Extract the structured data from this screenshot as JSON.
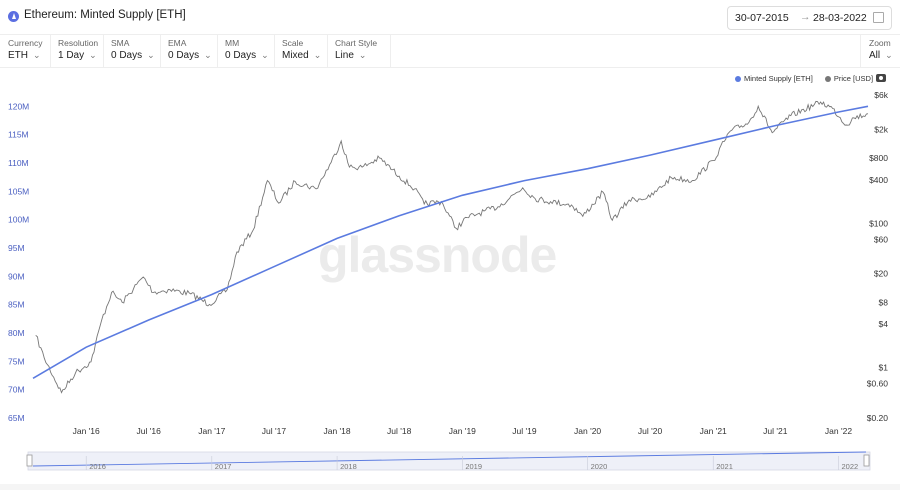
{
  "header": {
    "title": "Ethereum: Minted Supply [ETH]",
    "date_from": "30-07-2015",
    "date_to": "28-03-2022",
    "date_sep": "→"
  },
  "controls": [
    {
      "label": "Currency",
      "value": "ETH"
    },
    {
      "label": "Resolution",
      "value": "1 Day"
    },
    {
      "label": "SMA",
      "value": "0 Days"
    },
    {
      "label": "EMA",
      "value": "0 Days"
    },
    {
      "label": "MM",
      "value": "0 Days"
    },
    {
      "label": "Scale",
      "value": "Mixed"
    },
    {
      "label": "Chart Style",
      "value": "Line"
    },
    {
      "label": "Zoom",
      "value": "All"
    }
  ],
  "legend": [
    {
      "label": "Minted Supply [ETH]",
      "color": "#5b7be0"
    },
    {
      "label": "Price [USD]",
      "color": "#777777"
    }
  ],
  "watermark": "glassnode",
  "chart_data": {
    "type": "line",
    "x_ticks": [
      "Jan '16",
      "Jul '16",
      "Jan '17",
      "Jul '17",
      "Jan '18",
      "Jul '18",
      "Jan '19",
      "Jul '19",
      "Jan '20",
      "Jul '20",
      "Jan '21",
      "Jul '21",
      "Jan '22"
    ],
    "y_left_ticks": [
      "65M",
      "70M",
      "75M",
      "80M",
      "85M",
      "90M",
      "95M",
      "100M",
      "105M",
      "110M",
      "115M",
      "120M"
    ],
    "y_left_range": [
      65,
      122
    ],
    "y_left_unit": "M ETH",
    "y_right_ticks": [
      "$0.20",
      "$0.60",
      "$1",
      "$4",
      "$8",
      "$20",
      "$60",
      "$100",
      "$400",
      "$800",
      "$2k",
      "$6k"
    ],
    "y_right_scale": "log",
    "y_right_range": [
      0.2,
      6000
    ],
    "series": [
      {
        "name": "Minted Supply [ETH]",
        "color": "#5b7be0",
        "axis": "left",
        "points": [
          [
            "2015-07-30",
            72.0
          ],
          [
            "2016-01-01",
            77.5
          ],
          [
            "2016-07-01",
            82.3
          ],
          [
            "2017-01-01",
            86.8
          ],
          [
            "2017-07-01",
            91.7
          ],
          [
            "2018-01-01",
            96.7
          ],
          [
            "2018-07-01",
            100.7
          ],
          [
            "2019-01-01",
            104.3
          ],
          [
            "2019-07-01",
            106.9
          ],
          [
            "2020-01-01",
            109.0
          ],
          [
            "2020-07-01",
            111.4
          ],
          [
            "2021-01-01",
            114.0
          ],
          [
            "2021-07-01",
            116.6
          ],
          [
            "2022-01-01",
            119.0
          ],
          [
            "2022-03-28",
            120.0
          ]
        ]
      },
      {
        "name": "Price [USD]",
        "color": "#777777",
        "axis": "right",
        "points": [
          [
            "2015-08-07",
            2.8
          ],
          [
            "2015-09-01",
            1.35
          ],
          [
            "2015-10-21",
            0.45
          ],
          [
            "2015-12-01",
            0.85
          ],
          [
            "2016-01-15",
            1.2
          ],
          [
            "2016-02-15",
            4.5
          ],
          [
            "2016-03-15",
            11
          ],
          [
            "2016-04-15",
            8
          ],
          [
            "2016-06-15",
            18
          ],
          [
            "2016-07-15",
            11
          ],
          [
            "2016-09-01",
            12
          ],
          [
            "2016-11-01",
            10.5
          ],
          [
            "2016-12-25",
            7.5
          ],
          [
            "2017-02-15",
            12
          ],
          [
            "2017-03-15",
            40
          ],
          [
            "2017-05-01",
            80
          ],
          [
            "2017-06-12",
            390
          ],
          [
            "2017-07-15",
            190
          ],
          [
            "2017-09-01",
            380
          ],
          [
            "2017-11-01",
            300
          ],
          [
            "2017-12-15",
            700
          ],
          [
            "2018-01-13",
            1380
          ],
          [
            "2018-02-06",
            600
          ],
          [
            "2018-03-15",
            600
          ],
          [
            "2018-05-05",
            800
          ],
          [
            "2018-07-01",
            450
          ],
          [
            "2018-08-15",
            300
          ],
          [
            "2018-09-12",
            185
          ],
          [
            "2018-11-01",
            200
          ],
          [
            "2018-12-14",
            85
          ],
          [
            "2019-01-15",
            120
          ],
          [
            "2019-02-15",
            135
          ],
          [
            "2019-04-15",
            170
          ],
          [
            "2019-06-26",
            310
          ],
          [
            "2019-08-01",
            220
          ],
          [
            "2019-09-15",
            200
          ],
          [
            "2019-11-15",
            180
          ],
          [
            "2019-12-18",
            125
          ],
          [
            "2020-02-15",
            270
          ],
          [
            "2020-03-13",
            110
          ],
          [
            "2020-05-01",
            210
          ],
          [
            "2020-07-01",
            230
          ],
          [
            "2020-09-01",
            430
          ],
          [
            "2020-11-01",
            390
          ],
          [
            "2021-01-01",
            740
          ],
          [
            "2021-02-20",
            1900
          ],
          [
            "2021-04-15",
            2500
          ],
          [
            "2021-05-12",
            4200
          ],
          [
            "2021-06-22",
            1800
          ],
          [
            "2021-08-15",
            3100
          ],
          [
            "2021-11-10",
            4800
          ],
          [
            "2021-12-15",
            3900
          ],
          [
            "2022-01-24",
            2300
          ],
          [
            "2022-02-15",
            2900
          ],
          [
            "2022-03-28",
            3300
          ]
        ]
      }
    ],
    "navigator_ticks": [
      "2016",
      "2017",
      "2018",
      "2019",
      "2020",
      "2021",
      "2022"
    ]
  }
}
